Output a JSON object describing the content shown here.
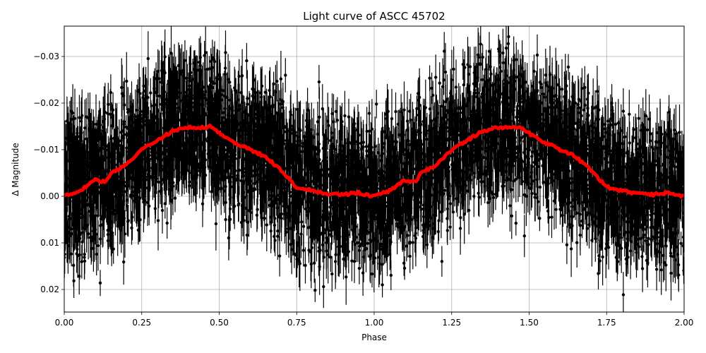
{
  "figure": {
    "title": "Light curve of ASCC 45702",
    "xlabel": "Phase",
    "ylabel": "Δ Magnitude"
  },
  "chart_data": {
    "type": "scatter",
    "title": "Light curve of ASCC 45702",
    "xlabel": "Phase",
    "ylabel": "Δ Magnitude",
    "xlim": [
      0.0,
      2.0
    ],
    "ylim": [
      0.025,
      -0.0365
    ],
    "y_inverted": true,
    "grid": true,
    "xticks": [
      0.0,
      0.25,
      0.5,
      0.75,
      1.0,
      1.25,
      1.5,
      1.75,
      2.0
    ],
    "xtick_labels": [
      "0.00",
      "0.25",
      "0.50",
      "0.75",
      "1.00",
      "1.25",
      "1.50",
      "1.75",
      "2.00"
    ],
    "yticks": [
      -0.03,
      -0.02,
      -0.01,
      0.0,
      0.01,
      0.02
    ],
    "ytick_labels": [
      "−0.03",
      "−0.02",
      "−0.01",
      "0.00",
      "0.01",
      "0.02"
    ],
    "series": [
      {
        "name": "observations",
        "kind": "errorbar-scatter",
        "color": "#000000",
        "description": "Dense phase-folded photometry with error bars, scatter roughly ±0.012 mag around the binned curve, many outliers reaching the axis limits",
        "scatter_halfwidth": 0.012
      },
      {
        "name": "binned curve",
        "kind": "line",
        "color": "#ff0000",
        "x": [
          0.0,
          0.05,
          0.1,
          0.13,
          0.15,
          0.2,
          0.25,
          0.3,
          0.35,
          0.38,
          0.4,
          0.43,
          0.47,
          0.5,
          0.55,
          0.6,
          0.65,
          0.7,
          0.75,
          0.8,
          0.85,
          0.9,
          0.95,
          0.98,
          1.0,
          1.05,
          1.1,
          1.13,
          1.15,
          1.2,
          1.25,
          1.3,
          1.35,
          1.38,
          1.4,
          1.43,
          1.47,
          1.5,
          1.55,
          1.6,
          1.65,
          1.7,
          1.75,
          1.8,
          1.85,
          1.9,
          1.95,
          1.98,
          2.0
        ],
        "values": [
          0.0,
          -0.0012,
          -0.0035,
          -0.003,
          -0.0048,
          -0.0068,
          -0.01,
          -0.012,
          -0.014,
          -0.0145,
          -0.0148,
          -0.0146,
          -0.015,
          -0.0135,
          -0.0115,
          -0.01,
          -0.0085,
          -0.0055,
          -0.002,
          -0.0012,
          -0.0005,
          -0.0003,
          -0.0008,
          -0.0002,
          0.0,
          -0.0012,
          -0.0035,
          -0.003,
          -0.0048,
          -0.0068,
          -0.01,
          -0.012,
          -0.014,
          -0.0145,
          -0.0148,
          -0.0146,
          -0.015,
          -0.0135,
          -0.0115,
          -0.01,
          -0.0085,
          -0.0055,
          -0.002,
          -0.0012,
          -0.0005,
          -0.0003,
          -0.0008,
          -0.0002,
          0.0
        ]
      }
    ]
  },
  "colors": {
    "data_points": "#000000",
    "binned_curve": "#ff0000",
    "grid": "#b0b0b0",
    "axes": "#000000"
  }
}
